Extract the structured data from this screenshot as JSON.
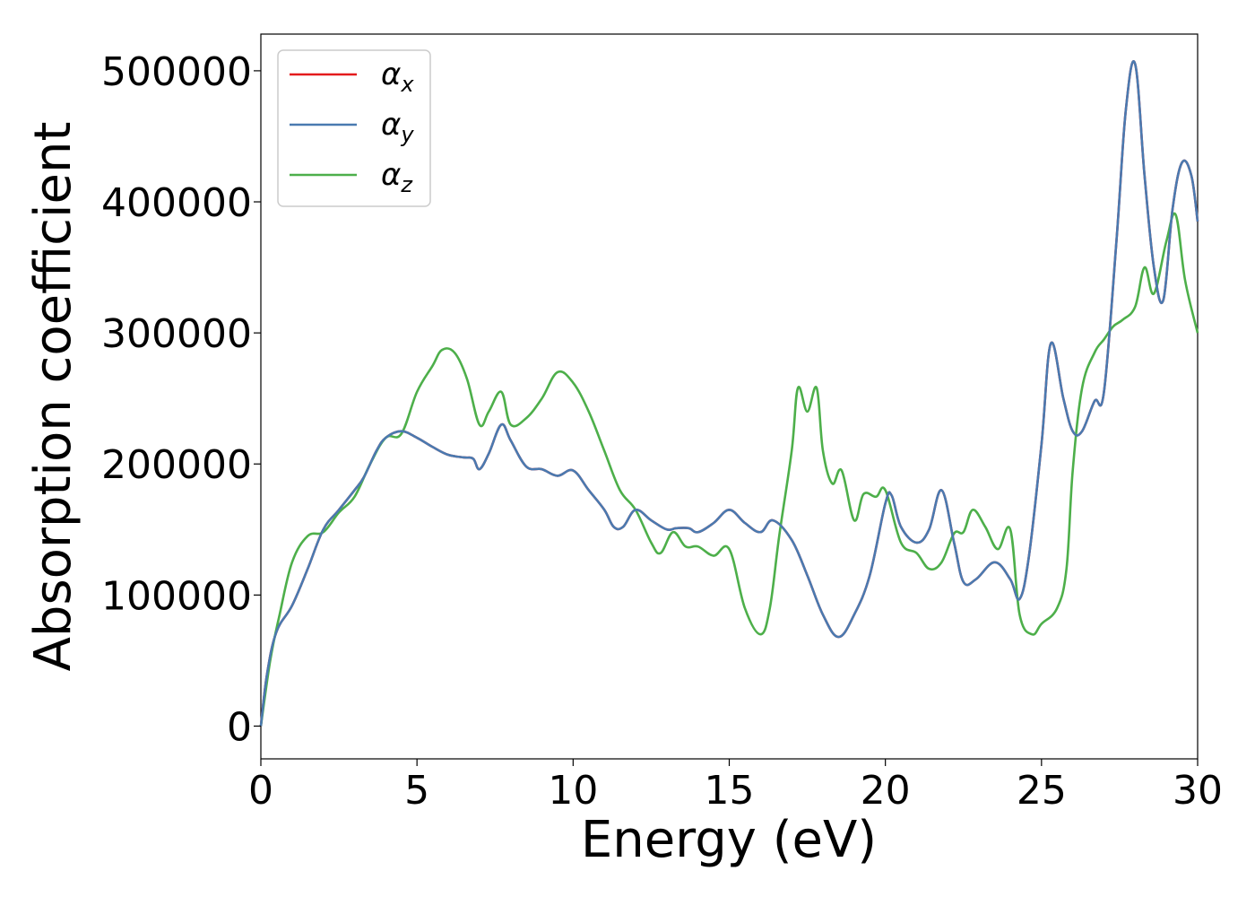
{
  "chart_data": {
    "type": "line",
    "title": "",
    "xlabel": "Energy (eV)",
    "ylabel": "Absorption coefficient",
    "xlim": [
      0,
      30
    ],
    "ylim": [
      -25000,
      528000
    ],
    "xticks": [
      0,
      5,
      10,
      15,
      20,
      25,
      30
    ],
    "yticks": [
      0,
      100000,
      200000,
      300000,
      400000,
      500000
    ],
    "grid": false,
    "legend_position": "top-left",
    "series": [
      {
        "name": "α",
        "subscript": "x",
        "color": "#e41a1c",
        "x": [
          0,
          0.2,
          0.5,
          1,
          1.5,
          2,
          2.5,
          3,
          3.3,
          3.7,
          4,
          4.5,
          5,
          5.5,
          6,
          6.5,
          6.8,
          7,
          7.3,
          7.7,
          8,
          8.5,
          9,
          9.5,
          10,
          10.5,
          11,
          11.3,
          11.6,
          12,
          12.5,
          13,
          13.3,
          13.7,
          14,
          14.5,
          15,
          15.5,
          16,
          16.4,
          17,
          17.5,
          18,
          18.5,
          19,
          19.5,
          20,
          20.2,
          20.5,
          21,
          21.4,
          21.8,
          22.2,
          22.5,
          22.9,
          23.5,
          24,
          24.3,
          24.6,
          25,
          25.3,
          25.7,
          26,
          26.3,
          26.7,
          27,
          27.4,
          27.7,
          28,
          28.3,
          28.6,
          28.9,
          29.2,
          29.5,
          29.8,
          30
        ],
        "y": [
          0,
          40000,
          72000,
          92000,
          120000,
          150000,
          165000,
          180000,
          190000,
          210000,
          220000,
          225000,
          220000,
          213000,
          207000,
          205000,
          204000,
          196000,
          208000,
          230000,
          218000,
          198000,
          196000,
          191000,
          195000,
          180000,
          165000,
          152000,
          152000,
          165000,
          157000,
          150000,
          151000,
          151000,
          148000,
          155000,
          165000,
          155000,
          148000,
          157000,
          142000,
          115000,
          85000,
          68000,
          85000,
          115000,
          170000,
          176000,
          152000,
          140000,
          150000,
          180000,
          140000,
          110000,
          112000,
          125000,
          112000,
          97000,
          130000,
          215000,
          292000,
          250000,
          225000,
          225000,
          248000,
          255000,
          370000,
          470000,
          505000,
          420000,
          350000,
          325000,
          395000,
          430000,
          420000,
          385000
        ]
      },
      {
        "name": "α",
        "subscript": "y",
        "color": "#4a7ab0",
        "x": [
          0,
          0.2,
          0.5,
          1,
          1.5,
          2,
          2.5,
          3,
          3.3,
          3.7,
          4,
          4.5,
          5,
          5.5,
          6,
          6.5,
          6.8,
          7,
          7.3,
          7.7,
          8,
          8.5,
          9,
          9.5,
          10,
          10.5,
          11,
          11.3,
          11.6,
          12,
          12.5,
          13,
          13.3,
          13.7,
          14,
          14.5,
          15,
          15.5,
          16,
          16.4,
          17,
          17.5,
          18,
          18.5,
          19,
          19.5,
          20,
          20.2,
          20.5,
          21,
          21.4,
          21.8,
          22.2,
          22.5,
          22.9,
          23.5,
          24,
          24.3,
          24.6,
          25,
          25.3,
          25.7,
          26,
          26.3,
          26.7,
          27,
          27.4,
          27.7,
          28,
          28.3,
          28.6,
          28.9,
          29.2,
          29.5,
          29.8,
          30
        ],
        "y": [
          0,
          40000,
          72000,
          92000,
          120000,
          150000,
          165000,
          180000,
          190000,
          210000,
          220000,
          225000,
          220000,
          213000,
          207000,
          205000,
          204000,
          196000,
          208000,
          230000,
          218000,
          198000,
          196000,
          191000,
          195000,
          180000,
          165000,
          152000,
          152000,
          165000,
          157000,
          150000,
          151000,
          151000,
          148000,
          155000,
          165000,
          155000,
          148000,
          157000,
          142000,
          115000,
          85000,
          68000,
          85000,
          115000,
          170000,
          176000,
          152000,
          140000,
          150000,
          180000,
          140000,
          110000,
          112000,
          125000,
          112000,
          97000,
          130000,
          215000,
          292000,
          250000,
          225000,
          225000,
          248000,
          255000,
          370000,
          470000,
          505000,
          420000,
          350000,
          325000,
          395000,
          430000,
          420000,
          385000
        ]
      },
      {
        "name": "α",
        "subscript": "z",
        "color": "#4daf4a",
        "x": [
          0,
          0.3,
          0.6,
          1,
          1.5,
          2,
          2.5,
          3,
          3.5,
          4,
          4.5,
          5,
          5.5,
          5.8,
          6.2,
          6.6,
          7,
          7.3,
          7.7,
          8,
          8.5,
          9,
          9.5,
          10,
          10.5,
          11,
          11.5,
          12,
          12.5,
          12.8,
          13.2,
          13.6,
          14,
          14.5,
          15,
          15.5,
          16,
          16.3,
          16.6,
          17,
          17.2,
          17.5,
          17.8,
          18,
          18.3,
          18.6,
          19,
          19.3,
          19.7,
          20,
          20.5,
          21,
          21.4,
          21.8,
          22.2,
          22.5,
          22.8,
          23.2,
          23.6,
          24,
          24.3,
          24.7,
          25,
          25.5,
          25.8,
          26,
          26.3,
          26.7,
          27,
          27.3,
          27.6,
          28,
          28.3,
          28.6,
          29,
          29.3,
          29.6,
          30
        ],
        "y": [
          0,
          50000,
          85000,
          125000,
          145000,
          148000,
          163000,
          175000,
          200000,
          220000,
          223000,
          255000,
          275000,
          287000,
          285000,
          265000,
          230000,
          240000,
          255000,
          230000,
          235000,
          250000,
          270000,
          262000,
          240000,
          210000,
          180000,
          165000,
          140000,
          132000,
          148000,
          137000,
          137000,
          130000,
          135000,
          90000,
          70000,
          90000,
          145000,
          210000,
          258000,
          240000,
          258000,
          210000,
          185000,
          195000,
          157000,
          177000,
          175000,
          180000,
          140000,
          132000,
          120000,
          125000,
          147000,
          148000,
          165000,
          152000,
          135000,
          150000,
          85000,
          70000,
          78000,
          90000,
          120000,
          195000,
          258000,
          285000,
          295000,
          305000,
          310000,
          320000,
          350000,
          330000,
          370000,
          390000,
          340000,
          300000
        ]
      }
    ]
  }
}
